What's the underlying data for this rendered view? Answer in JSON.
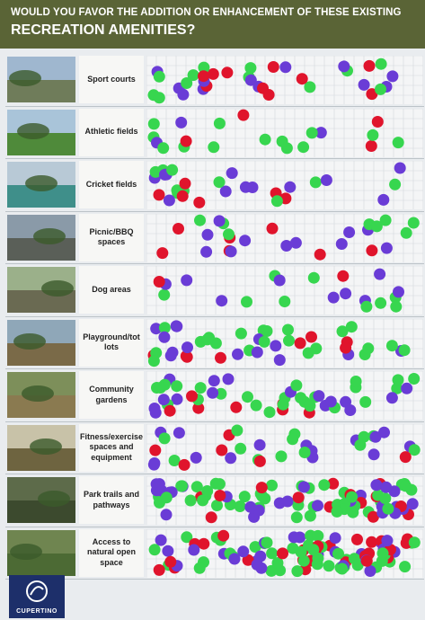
{
  "header": {
    "title_line_1": "WOULD YOU FAVOR THE ADDITION OR ENHANCEMENT OF THESE EXISTING",
    "title_line_2": "RECREATION AMENITIES?"
  },
  "rows": [
    {
      "label": "Sport courts"
    },
    {
      "label": "Athletic fields"
    },
    {
      "label": "Cricket fields"
    },
    {
      "label": "Picnic/BBQ spaces"
    },
    {
      "label": "Dog areas"
    },
    {
      "label": "Playground/tot lots"
    },
    {
      "label": "Community gardens"
    },
    {
      "label": "Fitness/exercise spaces and equipment"
    },
    {
      "label": "Park trails and pathways"
    },
    {
      "label": "Access to natural open space"
    }
  ],
  "footer": {
    "logo_text": "CUPERTINO"
  }
}
